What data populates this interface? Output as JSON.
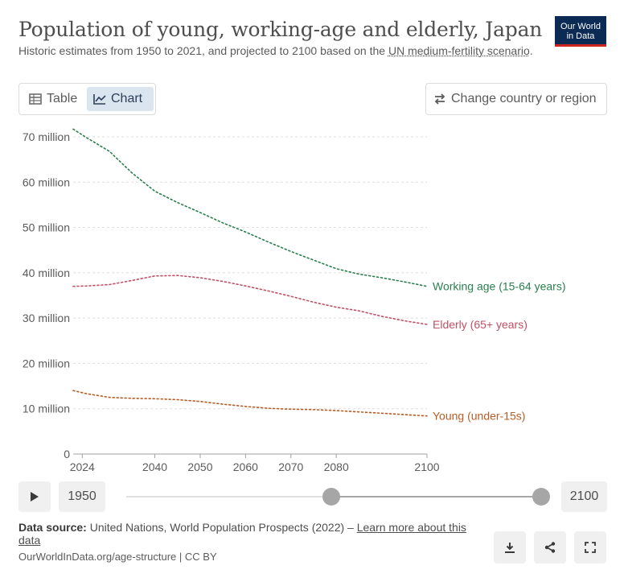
{
  "header": {
    "title": "Population of young, working-age and elderly, Japan",
    "subtitle_pre": "Historic estimates from 1950 to 2021, and projected to 2100 based on the ",
    "subtitle_link": "UN medium-fertility scenario",
    "subtitle_post": ".",
    "logo_line1": "Our World",
    "logo_line2": "in Data"
  },
  "controls": {
    "tab_table": "Table",
    "tab_chart": "Chart",
    "change_country": "Change country or region"
  },
  "chart_data": {
    "type": "line",
    "title": "Population of young, working-age and elderly, Japan",
    "x_ticks": [
      2024,
      2040,
      2050,
      2060,
      2070,
      2080,
      2100
    ],
    "x_tick_labels": [
      "2024",
      "2040",
      "2050",
      "2060",
      "2070",
      "2080",
      "2100"
    ],
    "xlim": [
      2022,
      2100
    ],
    "ylim": [
      0,
      72000000
    ],
    "y_ticks": [
      0,
      10000000,
      20000000,
      30000000,
      40000000,
      50000000,
      60000000,
      70000000
    ],
    "y_tick_labels": [
      "0",
      "10 million",
      "20 million",
      "30 million",
      "40 million",
      "50 million",
      "60 million",
      "70 million"
    ],
    "series": [
      {
        "name": "Working age (15-64 years)",
        "color": "#2a7f4f",
        "x": [
          2022,
          2025,
          2030,
          2035,
          2040,
          2045,
          2050,
          2055,
          2060,
          2065,
          2070,
          2075,
          2080,
          2085,
          2090,
          2095,
          2100
        ],
        "values": [
          71700000,
          69800000,
          66800000,
          62000000,
          58000000,
          55500000,
          53300000,
          51000000,
          49000000,
          46800000,
          44700000,
          42800000,
          40900000,
          39700000,
          38900000,
          38000000,
          37000000
        ]
      },
      {
        "name": "Elderly (65+ years)",
        "color": "#c15065",
        "x": [
          2022,
          2025,
          2030,
          2035,
          2040,
          2045,
          2050,
          2055,
          2060,
          2065,
          2070,
          2075,
          2080,
          2085,
          2090,
          2095,
          2100
        ],
        "values": [
          37000000,
          37100000,
          37400000,
          38300000,
          39300000,
          39400000,
          38900000,
          38100000,
          37100000,
          36000000,
          34800000,
          33500000,
          32400000,
          31600000,
          30400000,
          29400000,
          28600000
        ]
      },
      {
        "name": "Young (under-15s)",
        "color": "#b75c25",
        "x": [
          2022,
          2025,
          2030,
          2035,
          2040,
          2045,
          2050,
          2055,
          2060,
          2065,
          2070,
          2075,
          2080,
          2085,
          2090,
          2095,
          2100
        ],
        "values": [
          14000000,
          13300000,
          12500000,
          12300000,
          12200000,
          12000000,
          11600000,
          11000000,
          10500000,
          10100000,
          9900000,
          9800000,
          9600000,
          9300000,
          9000000,
          8700000,
          8400000
        ]
      }
    ]
  },
  "timeline": {
    "start_year": "1950",
    "end_year": "2100",
    "range_min": 1950,
    "range_max": 2100,
    "handle_start_value": 2024,
    "handle_end_value": 2100
  },
  "footer": {
    "source_label": "Data source:",
    "source_text": " United Nations, World Population Prospects (2022) – ",
    "source_link": "Learn more about this data",
    "citation": "OurWorldInData.org/age-structure | CC BY"
  },
  "icons": {
    "play": "play-icon",
    "download": "download-icon",
    "share": "share-icon",
    "fullscreen": "fullscreen-icon"
  }
}
